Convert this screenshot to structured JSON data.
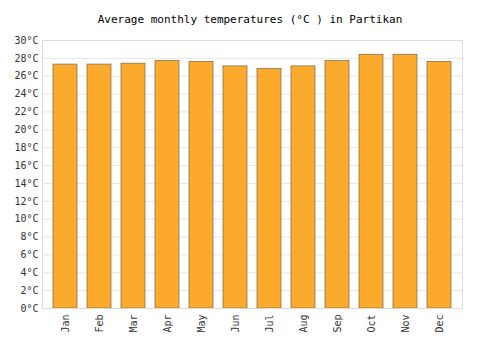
{
  "chart_data": {
    "type": "bar",
    "title": "Average monthly temperatures (°C ) in Partikan",
    "categories": [
      "Jan",
      "Feb",
      "Mar",
      "Apr",
      "May",
      "Jun",
      "Jul",
      "Aug",
      "Sep",
      "Oct",
      "Nov",
      "Dec"
    ],
    "values": [
      27.3,
      27.3,
      27.4,
      27.7,
      27.6,
      27.1,
      26.8,
      27.1,
      27.7,
      28.4,
      28.4,
      27.6
    ],
    "color": "#fbaa2c",
    "ylim": [
      0,
      30
    ],
    "yticks": [
      {
        "value": 0,
        "label": "0°C"
      },
      {
        "value": 2,
        "label": "2°C"
      },
      {
        "value": 4,
        "label": "4°C"
      },
      {
        "value": 6,
        "label": "6°C"
      },
      {
        "value": 8,
        "label": "8°C"
      },
      {
        "value": 10,
        "label": "10°C"
      },
      {
        "value": 12,
        "label": "12°C"
      },
      {
        "value": 14,
        "label": "14°C"
      },
      {
        "value": 16,
        "label": "16°C"
      },
      {
        "value": 18,
        "label": "18°C"
      },
      {
        "value": 20,
        "label": "20°C"
      },
      {
        "value": 22,
        "label": "22°C"
      },
      {
        "value": 24,
        "label": "24°C"
      },
      {
        "value": 26,
        "label": "26°C"
      },
      {
        "value": 28,
        "label": "28°C"
      },
      {
        "value": 30,
        "label": "30°C"
      }
    ],
    "grid": true
  }
}
